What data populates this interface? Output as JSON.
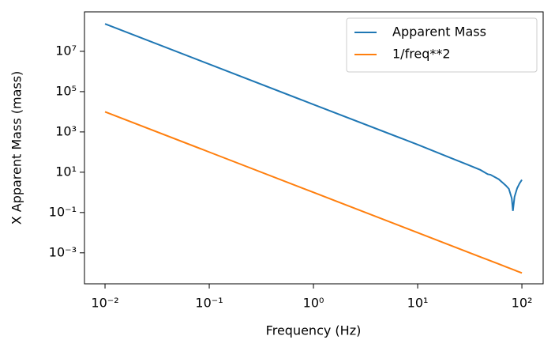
{
  "chart_data": {
    "type": "line",
    "xlabel": "Frequency (Hz)",
    "ylabel": "X Apparent Mass (mass)",
    "xscale": "log",
    "yscale": "log",
    "x": [
      0.01,
      0.1,
      1,
      10,
      20,
      30,
      40,
      47,
      50,
      60,
      70,
      75,
      80,
      82,
      85,
      90,
      95,
      100
    ],
    "series": [
      {
        "name": "Apparent Mass",
        "color": "#1f77b4",
        "values": [
          230000000,
          2300000,
          23000,
          234,
          55,
          24,
          13,
          8,
          7.5,
          4.5,
          2.2,
          1.5,
          0.5,
          0.12,
          0.6,
          1.6,
          2.8,
          4.2
        ]
      },
      {
        "name": "1/freq**2",
        "color": "#ff7f0e",
        "values": [
          10000,
          100,
          1,
          0.01,
          0.0025,
          0.00111,
          0.000625,
          0.000453,
          0.0004,
          0.000278,
          0.000204,
          0.000178,
          0.000156,
          0.000149,
          0.000138,
          0.000123,
          0.000111,
          0.0001
        ]
      }
    ],
    "xlim": [
      0.00635,
      160
    ],
    "ylim": [
      2.9e-05,
      910000000
    ],
    "xticks": [
      {
        "value": 0.01,
        "label": "10⁻²"
      },
      {
        "value": 0.1,
        "label": "10⁻¹"
      },
      {
        "value": 1,
        "label": "10⁰"
      },
      {
        "value": 10,
        "label": "10¹"
      },
      {
        "value": 100,
        "label": "10²"
      }
    ],
    "yticks": [
      {
        "value": 0.001,
        "label": "10⁻³"
      },
      {
        "value": 0.1,
        "label": "10⁻¹"
      },
      {
        "value": 10,
        "label": "10¹"
      },
      {
        "value": 1000,
        "label": "10³"
      },
      {
        "value": 100000,
        "label": "10⁵"
      },
      {
        "value": 10000000,
        "label": "10⁷"
      }
    ],
    "legend": "upper right",
    "grid": false
  }
}
